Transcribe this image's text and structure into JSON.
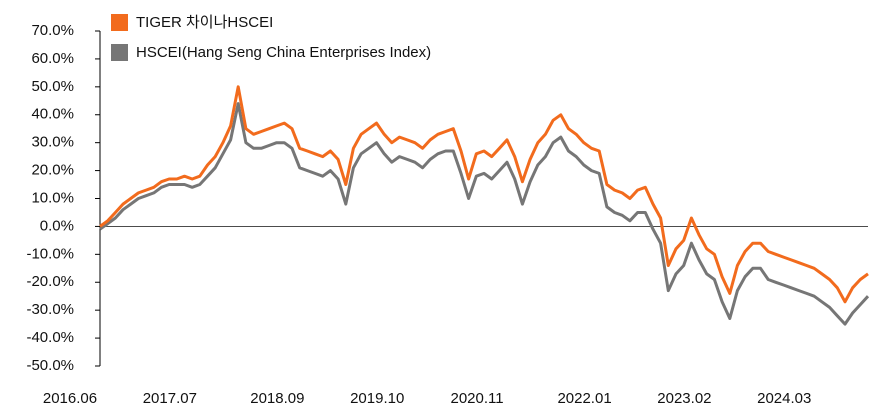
{
  "chart_data": {
    "type": "line",
    "x": [
      "2016.06",
      null,
      null,
      null,
      null,
      null,
      null,
      null,
      null,
      null,
      null,
      null,
      null,
      "2017.07",
      null,
      null,
      null,
      null,
      null,
      null,
      null,
      null,
      null,
      null,
      null,
      null,
      null,
      "2018.09",
      null,
      null,
      null,
      null,
      null,
      null,
      null,
      null,
      null,
      null,
      null,
      null,
      "2019.10",
      null,
      null,
      null,
      null,
      null,
      null,
      null,
      null,
      null,
      null,
      null,
      null,
      "2020.11",
      null,
      null,
      null,
      null,
      null,
      null,
      null,
      null,
      null,
      null,
      null,
      null,
      null,
      "2022.01",
      null,
      null,
      null,
      null,
      null,
      null,
      null,
      null,
      null,
      null,
      null,
      null,
      "2023.02",
      null,
      null,
      null,
      null,
      null,
      null,
      null,
      null,
      null,
      null,
      null,
      null,
      "2024.03",
      null,
      null,
      null,
      null,
      null,
      null,
      null
    ],
    "series": [
      {
        "name": "TIGER 차이나HSCEI",
        "color": "#f26b1d",
        "values": [
          0,
          2,
          5,
          8,
          10,
          12,
          13,
          14,
          16,
          17,
          17,
          18,
          17,
          18,
          22,
          25,
          30,
          36,
          50,
          35,
          33,
          34,
          35,
          36,
          37,
          35,
          28,
          27,
          26,
          25,
          27,
          24,
          15,
          28,
          33,
          35,
          37,
          33,
          30,
          32,
          31,
          30,
          28,
          31,
          33,
          34,
          35,
          27,
          17,
          26,
          27,
          25,
          28,
          31,
          25,
          16,
          24,
          30,
          33,
          38,
          40,
          35,
          33,
          30,
          28,
          27,
          15,
          13,
          12,
          10,
          13,
          14,
          8,
          3,
          -14,
          -8,
          -5,
          3,
          -3,
          -8,
          -10,
          -18,
          -24,
          -14,
          -9,
          -6,
          -6,
          -9,
          -10,
          -11,
          -12,
          -13,
          -14,
          -15,
          -17,
          -19,
          -22,
          -27,
          -22,
          -19,
          -17
        ]
      },
      {
        "name": "HSCEI(Hang Seng China Enterprises Index)",
        "color": "#767676",
        "values": [
          -1,
          1,
          3,
          6,
          8,
          10,
          11,
          12,
          14,
          15,
          15,
          15,
          14,
          15,
          18,
          21,
          26,
          31,
          44,
          30,
          28,
          28,
          29,
          30,
          30,
          28,
          21,
          20,
          19,
          18,
          20,
          17,
          8,
          21,
          26,
          28,
          30,
          26,
          23,
          25,
          24,
          23,
          21,
          24,
          26,
          27,
          27,
          19,
          10,
          18,
          19,
          17,
          20,
          23,
          17,
          8,
          16,
          22,
          25,
          30,
          32,
          27,
          25,
          22,
          20,
          19,
          7,
          5,
          4,
          2,
          5,
          5,
          -1,
          -6,
          -23,
          -17,
          -14,
          -6,
          -12,
          -17,
          -19,
          -27,
          -33,
          -23,
          -18,
          -15,
          -15,
          -19,
          -20,
          -21,
          -22,
          -23,
          -24,
          -25,
          -27,
          -29,
          -32,
          -35,
          -31,
          -28,
          -25
        ]
      }
    ],
    "ylim": [
      -50,
      70
    ],
    "yticks": [
      {
        "value": -50,
        "label": "-50.0%"
      },
      {
        "value": -40,
        "label": "-40.0%"
      },
      {
        "value": -30,
        "label": "-30.0%"
      },
      {
        "value": -20,
        "label": "-20.0%"
      },
      {
        "value": -10,
        "label": "-10.0%"
      },
      {
        "value": 0,
        "label": "0.0%"
      },
      {
        "value": 10,
        "label": "10.0%"
      },
      {
        "value": 20,
        "label": "20.0%"
      },
      {
        "value": 30,
        "label": "30.0%"
      },
      {
        "value": 40,
        "label": "40.0%"
      },
      {
        "value": 50,
        "label": "50.0%"
      },
      {
        "value": 60,
        "label": "60.0%"
      },
      {
        "value": 70,
        "label": "70.0%"
      }
    ],
    "legend": "upper left"
  }
}
